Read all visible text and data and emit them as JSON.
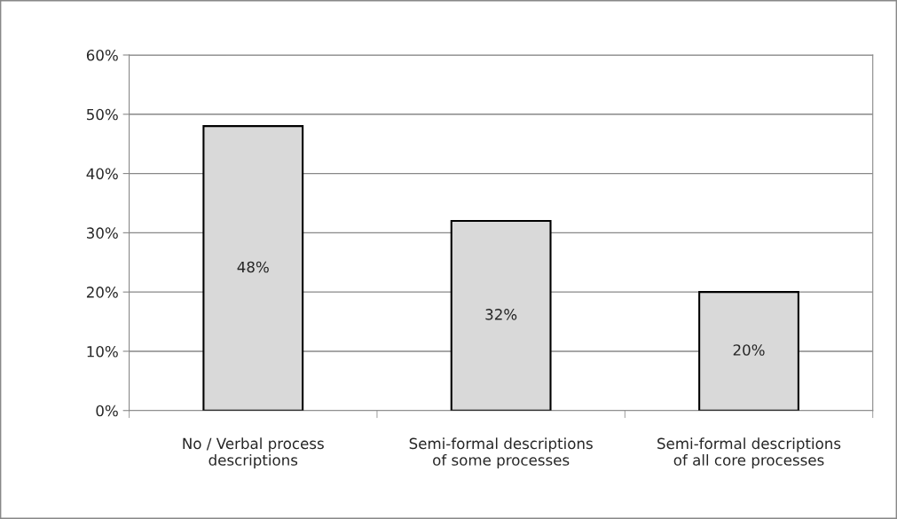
{
  "chart_data": {
    "type": "bar",
    "categories": [
      "No / Verbal process\ndescriptions",
      "Semi-formal descriptions\nof some processes",
      "Semi-formal descriptions\nof all core processes"
    ],
    "values": [
      48,
      32,
      20
    ],
    "value_labels": [
      "48%",
      "32%",
      "20%"
    ],
    "color": "#d9d9d9",
    "ylim": [
      0,
      60
    ],
    "yticks": [
      {
        "value": 0,
        "label": "0%"
      },
      {
        "value": 10,
        "label": "10%"
      },
      {
        "value": 20,
        "label": "20%"
      },
      {
        "value": 30,
        "label": "30%"
      },
      {
        "value": 40,
        "label": "40%"
      },
      {
        "value": 50,
        "label": "50%"
      },
      {
        "value": 60,
        "label": "60%"
      }
    ],
    "grid": "y",
    "legend": false
  }
}
